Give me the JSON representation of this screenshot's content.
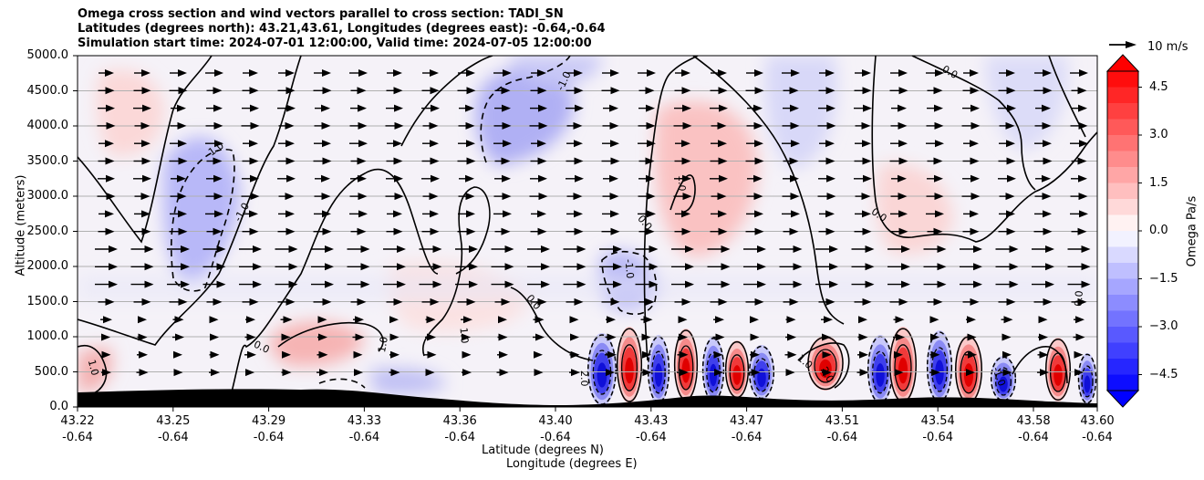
{
  "titles": {
    "line1": "Omega cross section and wind vectors parallel to cross section: TADI_SN",
    "line2": "Latitudes (degrees north): 43.21,43.61, Longitudes (degrees east): -0.64,-0.64",
    "line3": "Simulation start time: 2024-07-01 12:00:00, Valid time: 2024-07-05 12:00:00"
  },
  "chart_data": {
    "type": "heatmap",
    "subtype": "filled contour cross-section with wind vectors",
    "ylabel": "Altitude (meters)",
    "xlabel_line1": "Latitude (degrees N)",
    "xlabel_line2": "Longitude (degrees E)",
    "ylim": [
      0,
      5000
    ],
    "y_ticks": [
      "0.0",
      "500.0",
      "1000.0",
      "1500.0",
      "2000.0",
      "2500.0",
      "3000.0",
      "3500.0",
      "4000.0",
      "4500.0",
      "5000.0"
    ],
    "x_ticks_lat": [
      "43.22",
      "43.25",
      "43.29",
      "43.33",
      "43.36",
      "43.40",
      "43.43",
      "43.47",
      "43.51",
      "43.54",
      "43.58",
      "43.60"
    ],
    "x_ticks_lon": [
      "-0.64",
      "-0.64",
      "-0.64",
      "-0.64",
      "-0.64",
      "-0.64",
      "-0.64",
      "-0.64",
      "-0.64",
      "-0.64",
      "-0.64",
      "-0.64"
    ],
    "grid": "horizontal",
    "colorbar": {
      "label": "Omega Pa/s",
      "range": [
        -5,
        5
      ],
      "ticks": [
        "4.5",
        "3.0",
        "1.5",
        "0.0",
        "−1.5",
        "−3.0",
        "−4.5"
      ],
      "extend": "both",
      "colormap": "bwr"
    },
    "contour_labels": [
      "-1.0",
      "0.0",
      "1.0",
      "2.0"
    ],
    "vector_key": "10 m/s",
    "wind_direction": "rightward",
    "colors": {
      "negative": "#0000ff",
      "positive": "#ff0000",
      "neutral": "#ffffff",
      "terrain": "#000000"
    }
  }
}
